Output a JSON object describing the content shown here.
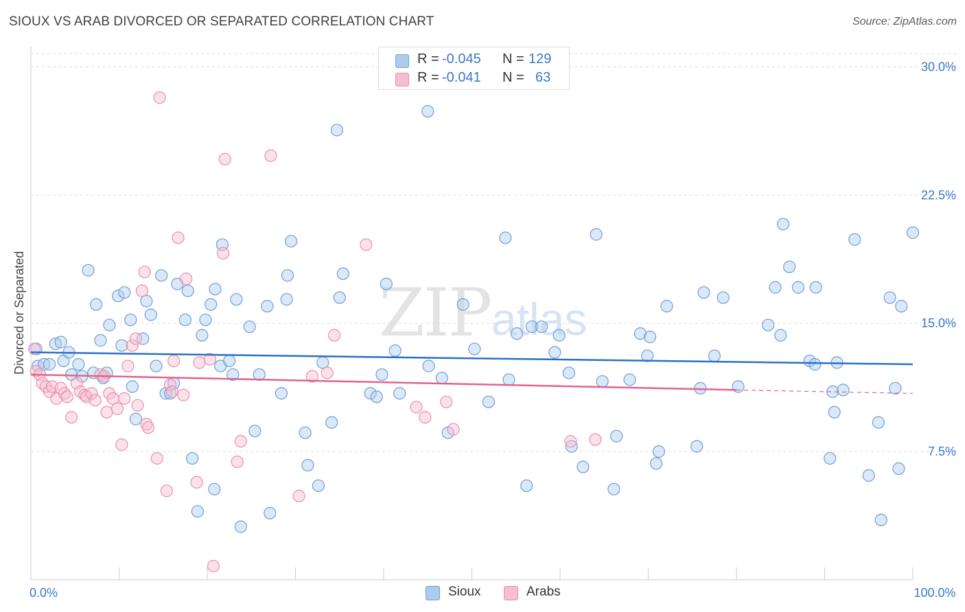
{
  "title": "SIOUX VS ARAB DIVORCED OR SEPARATED CORRELATION CHART",
  "source": "Source: ZipAtlas.com",
  "watermark": {
    "zip": "ZIP",
    "atlas": "atlas"
  },
  "legend_top": {
    "rows": [
      {
        "r_label": "R =",
        "r_value": "-0.045",
        "n_label": "N =",
        "n_value": "129"
      },
      {
        "r_label": "R =",
        "r_value": "-0.041",
        "n_label": "N =",
        "n_value": "63"
      }
    ]
  },
  "legend_bottom": [
    {
      "label": "Sioux"
    },
    {
      "label": "Arabs"
    }
  ],
  "colors": {
    "sioux_fill": "#aecbee",
    "sioux_stroke": "#6f9fd8",
    "sioux_line": "#2a6fc9",
    "arabs_fill": "#f6bfd0",
    "arabs_stroke": "#ea8fac",
    "arabs_line": "#e0638e",
    "tick_label": "#3a78c8",
    "grid": "#dddddd"
  },
  "chart_data": {
    "type": "scatter",
    "title": "SIOUX VS ARAB DIVORCED OR SEPARATED CORRELATION CHART",
    "xlabel": "",
    "ylabel": "Divorced or Separated",
    "xlim": [
      0,
      100
    ],
    "ylim": [
      0,
      31.5
    ],
    "x_tick_labels": [
      {
        "value": 0,
        "label": "0.0%"
      },
      {
        "value": 100,
        "label": "100.0%"
      }
    ],
    "y_tick_labels": [
      {
        "value": 7.5,
        "label": "7.5%"
      },
      {
        "value": 15,
        "label": "15.0%"
      },
      {
        "value": 22.5,
        "label": "22.5%"
      },
      {
        "value": 30,
        "label": "30.0%"
      }
    ],
    "x_minor_ticks": [
      0,
      10,
      20,
      30,
      40,
      50,
      60,
      70,
      80,
      90,
      100
    ],
    "series": [
      {
        "name": "Sioux",
        "R": -0.045,
        "N": 129,
        "trend": {
          "x0": 0,
          "y0": 13.3,
          "x1": 100,
          "y1": 12.6
        },
        "points": [
          [
            0.6,
            13.5
          ],
          [
            0.8,
            12.5
          ],
          [
            1.5,
            12.6
          ],
          [
            2.1,
            12.6
          ],
          [
            2.8,
            13.8
          ],
          [
            3.4,
            13.9
          ],
          [
            3.7,
            12.8
          ],
          [
            4.3,
            13.3
          ],
          [
            4.6,
            12.0
          ],
          [
            5.4,
            12.6
          ],
          [
            5.8,
            11.9
          ],
          [
            6.5,
            18.1
          ],
          [
            7.1,
            12.1
          ],
          [
            7.4,
            16.1
          ],
          [
            7.9,
            14.0
          ],
          [
            8.2,
            11.8
          ],
          [
            8.6,
            12.1
          ],
          [
            8.9,
            14.9
          ],
          [
            9.9,
            16.6
          ],
          [
            10.3,
            13.7
          ],
          [
            10.6,
            16.8
          ],
          [
            11.3,
            15.2
          ],
          [
            11.5,
            11.3
          ],
          [
            11.9,
            9.4
          ],
          [
            12.7,
            14.1
          ],
          [
            13.1,
            16.3
          ],
          [
            13.6,
            15.5
          ],
          [
            14.2,
            12.5
          ],
          [
            14.8,
            17.8
          ],
          [
            15.3,
            10.9
          ],
          [
            15.8,
            10.9
          ],
          [
            16.2,
            11.5
          ],
          [
            16.6,
            17.3
          ],
          [
            17.5,
            15.2
          ],
          [
            17.8,
            16.9
          ],
          [
            18.3,
            7.1
          ],
          [
            18.9,
            4.0
          ],
          [
            19.4,
            14.3
          ],
          [
            19.8,
            15.2
          ],
          [
            20.8,
            5.3
          ],
          [
            20.4,
            16.1
          ],
          [
            20.9,
            17.0
          ],
          [
            21.5,
            12.5
          ],
          [
            21.7,
            19.6
          ],
          [
            22.5,
            12.8
          ],
          [
            22.9,
            12.0
          ],
          [
            23.3,
            16.4
          ],
          [
            23.8,
            3.1
          ],
          [
            24.8,
            14.8
          ],
          [
            25.4,
            8.7
          ],
          [
            25.9,
            12.0
          ],
          [
            26.8,
            16.0
          ],
          [
            27.1,
            3.9
          ],
          [
            28.4,
            10.9
          ],
          [
            29.0,
            16.4
          ],
          [
            29.1,
            17.8
          ],
          [
            29.5,
            19.8
          ],
          [
            31.1,
            8.6
          ],
          [
            31.4,
            6.7
          ],
          [
            32.6,
            5.5
          ],
          [
            33.1,
            12.7
          ],
          [
            34.1,
            9.2
          ],
          [
            34.7,
            26.3
          ],
          [
            35.0,
            16.5
          ],
          [
            35.4,
            17.9
          ],
          [
            38.5,
            10.9
          ],
          [
            39.2,
            10.7
          ],
          [
            39.8,
            12.0
          ],
          [
            40.3,
            17.3
          ],
          [
            41.3,
            13.4
          ],
          [
            41.8,
            10.9
          ],
          [
            45.0,
            27.4
          ],
          [
            45.1,
            12.5
          ],
          [
            46.6,
            11.8
          ],
          [
            47.3,
            8.6
          ],
          [
            49.0,
            16.1
          ],
          [
            50.3,
            13.5
          ],
          [
            51.9,
            10.4
          ],
          [
            53.8,
            20.0
          ],
          [
            54.2,
            11.7
          ],
          [
            55.1,
            14.4
          ],
          [
            56.2,
            5.5
          ],
          [
            56.8,
            14.8
          ],
          [
            57.9,
            14.8
          ],
          [
            59.4,
            13.3
          ],
          [
            59.9,
            14.3
          ],
          [
            61.0,
            12.1
          ],
          [
            61.3,
            7.8
          ],
          [
            62.6,
            6.6
          ],
          [
            64.1,
            20.2
          ],
          [
            64.8,
            11.6
          ],
          [
            66.1,
            5.3
          ],
          [
            66.4,
            8.4
          ],
          [
            67.9,
            11.7
          ],
          [
            69.1,
            14.4
          ],
          [
            69.9,
            13.1
          ],
          [
            70.2,
            14.2
          ],
          [
            70.9,
            6.8
          ],
          [
            71.2,
            7.5
          ],
          [
            72.1,
            16.0
          ],
          [
            75.5,
            7.8
          ],
          [
            75.9,
            11.2
          ],
          [
            76.3,
            16.8
          ],
          [
            77.5,
            13.1
          ],
          [
            78.5,
            16.5
          ],
          [
            80.2,
            11.3
          ],
          [
            83.6,
            14.9
          ],
          [
            84.4,
            17.1
          ],
          [
            85.0,
            14.3
          ],
          [
            85.3,
            20.8
          ],
          [
            86.0,
            18.3
          ],
          [
            87.0,
            17.1
          ],
          [
            88.3,
            12.8
          ],
          [
            88.9,
            12.6
          ],
          [
            89.0,
            17.1
          ],
          [
            90.6,
            7.1
          ],
          [
            90.9,
            11.0
          ],
          [
            91.1,
            9.8
          ],
          [
            91.4,
            12.7
          ],
          [
            92.1,
            11.1
          ],
          [
            93.4,
            19.9
          ],
          [
            95.0,
            6.1
          ],
          [
            96.1,
            9.2
          ],
          [
            97.4,
            16.5
          ],
          [
            98.0,
            11.2
          ],
          [
            98.4,
            6.5
          ],
          [
            98.7,
            16.0
          ],
          [
            100.0,
            20.3
          ],
          [
            96.4,
            3.5
          ]
        ]
      },
      {
        "name": "Arabs",
        "R": -0.041,
        "N": 63,
        "trend": {
          "x0": 0,
          "y0": 12.0,
          "x1": 80,
          "y1": 11.1
        },
        "trend_extension": {
          "x0": 80,
          "y0": 11.1,
          "x1": 100,
          "y1": 10.9
        },
        "points": [
          [
            0.4,
            13.5
          ],
          [
            0.6,
            12.2
          ],
          [
            1.0,
            12.0
          ],
          [
            1.3,
            11.5
          ],
          [
            1.7,
            11.3
          ],
          [
            2.1,
            11.0
          ],
          [
            2.4,
            11.3
          ],
          [
            2.9,
            10.6
          ],
          [
            3.4,
            11.2
          ],
          [
            3.8,
            10.9
          ],
          [
            4.1,
            10.7
          ],
          [
            4.6,
            9.5
          ],
          [
            5.2,
            11.5
          ],
          [
            5.6,
            11.0
          ],
          [
            6.1,
            10.8
          ],
          [
            6.3,
            10.7
          ],
          [
            6.9,
            10.9
          ],
          [
            7.3,
            10.5
          ],
          [
            7.9,
            12.0
          ],
          [
            8.3,
            11.9
          ],
          [
            8.6,
            9.8
          ],
          [
            8.9,
            10.9
          ],
          [
            9.3,
            10.6
          ],
          [
            9.8,
            10.0
          ],
          [
            10.3,
            7.9
          ],
          [
            10.6,
            10.6
          ],
          [
            11.0,
            12.5
          ],
          [
            11.5,
            13.7
          ],
          [
            11.9,
            14.1
          ],
          [
            12.1,
            10.2
          ],
          [
            12.6,
            16.9
          ],
          [
            12.9,
            18.0
          ],
          [
            13.1,
            9.1
          ],
          [
            13.3,
            8.9
          ],
          [
            14.3,
            7.1
          ],
          [
            14.6,
            28.2
          ],
          [
            15.4,
            5.2
          ],
          [
            15.8,
            11.4
          ],
          [
            16.2,
            12.8
          ],
          [
            16.7,
            20.0
          ],
          [
            17.3,
            10.8
          ],
          [
            17.6,
            17.6
          ],
          [
            18.8,
            5.7
          ],
          [
            19.1,
            12.7
          ],
          [
            20.3,
            12.9
          ],
          [
            20.7,
            0.8
          ],
          [
            21.8,
            19.1
          ],
          [
            22.0,
            24.6
          ],
          [
            23.4,
            6.9
          ],
          [
            23.8,
            8.1
          ],
          [
            27.2,
            24.8
          ],
          [
            30.4,
            4.9
          ],
          [
            31.9,
            11.9
          ],
          [
            33.6,
            12.1
          ],
          [
            34.4,
            14.3
          ],
          [
            38.0,
            19.6
          ],
          [
            43.7,
            10.1
          ],
          [
            44.7,
            9.5
          ],
          [
            47.1,
            10.4
          ],
          [
            47.9,
            8.8
          ],
          [
            61.2,
            8.1
          ],
          [
            64.0,
            8.2
          ],
          [
            16.0,
            11.0
          ]
        ]
      }
    ]
  }
}
